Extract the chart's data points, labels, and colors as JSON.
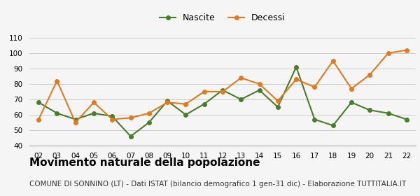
{
  "years": [
    "02",
    "03",
    "04",
    "05",
    "06",
    "07",
    "08",
    "09",
    "10",
    "11",
    "12",
    "13",
    "14",
    "15",
    "16",
    "17",
    "18",
    "19",
    "20",
    "21",
    "22"
  ],
  "nascite": [
    68,
    61,
    57,
    61,
    59,
    46,
    55,
    69,
    60,
    67,
    76,
    70,
    76,
    65,
    91,
    57,
    53,
    68,
    63,
    61,
    57
  ],
  "decessi": [
    57,
    82,
    55,
    68,
    57,
    58,
    61,
    68,
    67,
    75,
    75,
    84,
    80,
    69,
    83,
    78,
    95,
    77,
    86,
    100,
    102
  ],
  "nascite_color": "#4a7c2f",
  "decessi_color": "#e07b20",
  "background_color": "#f5f5f5",
  "grid_color": "#cccccc",
  "ylim": [
    40,
    115
  ],
  "yticks": [
    40,
    50,
    60,
    70,
    80,
    90,
    100,
    110
  ],
  "title": "Movimento naturale della popolazione",
  "subtitle": "COMUNE DI SONNINO (LT) - Dati ISTAT (bilancio demografico 1 gen-31 dic) - Elaborazione TUTTITALIA.IT",
  "legend_nascite": "Nascite",
  "legend_decessi": "Decessi",
  "title_fontsize": 11,
  "subtitle_fontsize": 7.5,
  "marker_size": 4,
  "line_width": 1.5
}
